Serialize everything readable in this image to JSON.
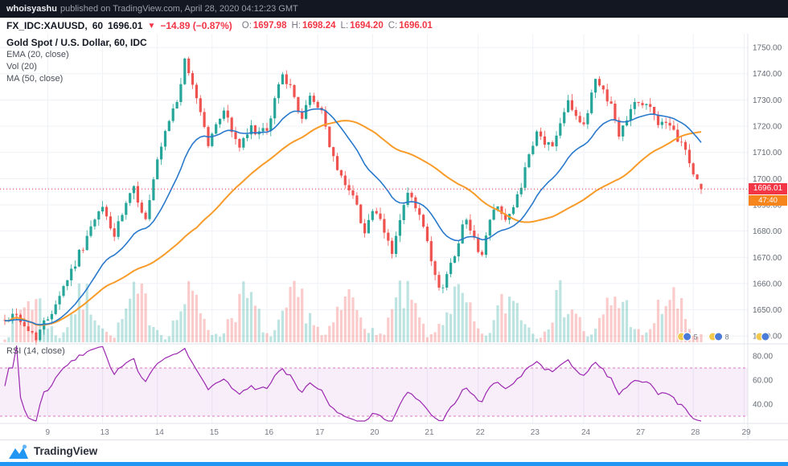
{
  "header": {
    "username": "whoisyashu",
    "published_text": "published on TradingView.com, April 28, 2020 04:12:23 GMT"
  },
  "symbol_bar": {
    "symbol": "FX_IDC:XAUUSD,",
    "interval": "60",
    "last_price": "1696.01",
    "direction": "▼",
    "change": "−14.89 (−0.87%)",
    "ohlc": [
      {
        "label": "O:",
        "value": "1697.98"
      },
      {
        "label": "H:",
        "value": "1698.24"
      },
      {
        "label": "L:",
        "value": "1694.20"
      },
      {
        "label": "C:",
        "value": "1696.01"
      }
    ]
  },
  "legend": {
    "title": "Gold Spot / U.S. Dollar, 60, IDC",
    "items": [
      "EMA (20, close)",
      "Vol (20)",
      "MA (50, close)"
    ],
    "rsi": "RSI (14, close)"
  },
  "price_axis": {
    "badge": "1696.01",
    "countdown": "47:40"
  },
  "idea_markers": [
    {
      "slot": 173,
      "count": "5"
    },
    {
      "slot": 181,
      "count": "8"
    },
    {
      "slot": 193,
      "count": ""
    }
  ],
  "footer": {
    "brand": "TradingView"
  },
  "colors": {
    "up": "#26a69a",
    "down": "#ef5350",
    "up_vol": "rgba(38,166,154,0.30)",
    "down_vol": "rgba(239,83,80,0.30)",
    "ema": "#2979cc",
    "ma": "#f89b29",
    "rsi": "#9c27b0",
    "rsi_band_fill": "rgba(156,39,176,0.08)",
    "rsi_band_line": "#d24fa6",
    "grid": "#eef1f6",
    "axis_border": "#e0e3eb",
    "axis_text": "#656a74",
    "time_text": "#787b86",
    "price_line": "#f23645",
    "badge_bg": "#f23645",
    "countdown_bg": "#f7851e",
    "accent_blue": "#2196f3"
  },
  "chart_data": {
    "type": "candlestick",
    "title": "Gold Spot / U.S. Dollar, 60, IDC",
    "symbol": "XAUUSD",
    "exchange": "FX_IDC",
    "interval_minutes": 60,
    "current_price": 1696.01,
    "countdown": "47:40",
    "price_axis_ticks": [
      1750,
      1740,
      1730,
      1720,
      1710,
      1700,
      1690,
      1680,
      1670,
      1660,
      1650,
      1640
    ],
    "scale": {
      "top_price": 1754,
      "bottom_price": 1637
    },
    "rsi_ticks": [
      80,
      60,
      40
    ],
    "rsi_band": [
      30,
      70
    ],
    "indicators": {
      "ema": 20,
      "ma": 50,
      "rsi": 14,
      "vol_ma": 20
    },
    "slots": 190,
    "candles_count": 179,
    "last_candle": {
      "o": 1697.98,
      "h": 1698.24,
      "l": 1694.2,
      "c": 1696.01
    },
    "time_labels": [
      {
        "slot": 11,
        "label": "9"
      },
      {
        "slot": 25,
        "label": "13"
      },
      {
        "slot": 39,
        "label": "14"
      },
      {
        "slot": 53,
        "label": "15"
      },
      {
        "slot": 67,
        "label": "16"
      },
      {
        "slot": 80,
        "label": "17"
      },
      {
        "slot": 94,
        "label": "20"
      },
      {
        "slot": 108,
        "label": "21"
      },
      {
        "slot": 121,
        "label": "22"
      },
      {
        "slot": 135,
        "label": "23"
      },
      {
        "slot": 148,
        "label": "24"
      },
      {
        "slot": 162,
        "label": "27"
      },
      {
        "slot": 176,
        "label": "28"
      },
      {
        "slot": 189,
        "label": "29"
      }
    ],
    "price_waypoints": [
      [
        0,
        1646
      ],
      [
        3,
        1649
      ],
      [
        5,
        1643
      ],
      [
        8,
        1640
      ],
      [
        11,
        1647
      ],
      [
        14,
        1656
      ],
      [
        18,
        1668
      ],
      [
        22,
        1681
      ],
      [
        25,
        1689
      ],
      [
        28,
        1678
      ],
      [
        31,
        1690
      ],
      [
        33,
        1696
      ],
      [
        36,
        1684
      ],
      [
        39,
        1706
      ],
      [
        42,
        1722
      ],
      [
        44,
        1730
      ],
      [
        46,
        1744
      ],
      [
        48,
        1736
      ],
      [
        50,
        1726
      ],
      [
        52,
        1713
      ],
      [
        54,
        1720
      ],
      [
        56,
        1727
      ],
      [
        58,
        1718
      ],
      [
        60,
        1712
      ],
      [
        63,
        1719
      ],
      [
        67,
        1717
      ],
      [
        69,
        1730
      ],
      [
        71,
        1741
      ],
      [
        73,
        1734
      ],
      [
        76,
        1723
      ],
      [
        78,
        1731
      ],
      [
        81,
        1726
      ],
      [
        84,
        1707
      ],
      [
        86,
        1700
      ],
      [
        88,
        1697
      ],
      [
        90,
        1689
      ],
      [
        92,
        1680
      ],
      [
        94,
        1688
      ],
      [
        96,
        1683
      ],
      [
        99,
        1672
      ],
      [
        101,
        1684
      ],
      [
        103,
        1694
      ],
      [
        105,
        1689
      ],
      [
        107,
        1681
      ],
      [
        109,
        1668
      ],
      [
        111,
        1657
      ],
      [
        113,
        1663
      ],
      [
        115,
        1672
      ],
      [
        118,
        1686
      ],
      [
        120,
        1676
      ],
      [
        122,
        1671
      ],
      [
        124,
        1684
      ],
      [
        126,
        1691
      ],
      [
        128,
        1684
      ],
      [
        130,
        1688
      ],
      [
        133,
        1703
      ],
      [
        136,
        1717
      ],
      [
        138,
        1714
      ],
      [
        140,
        1712
      ],
      [
        142,
        1722
      ],
      [
        144,
        1731
      ],
      [
        146,
        1724
      ],
      [
        148,
        1719
      ],
      [
        150,
        1733
      ],
      [
        151,
        1738
      ],
      [
        153,
        1734
      ],
      [
        155,
        1728
      ],
      [
        157,
        1716
      ],
      [
        159,
        1724
      ],
      [
        161,
        1730
      ],
      [
        163,
        1728
      ],
      [
        165,
        1727
      ],
      [
        167,
        1722
      ],
      [
        169,
        1720
      ],
      [
        171,
        1717
      ],
      [
        173,
        1714
      ],
      [
        175,
        1706
      ],
      [
        177,
        1699
      ],
      [
        178,
        1696
      ]
    ]
  }
}
